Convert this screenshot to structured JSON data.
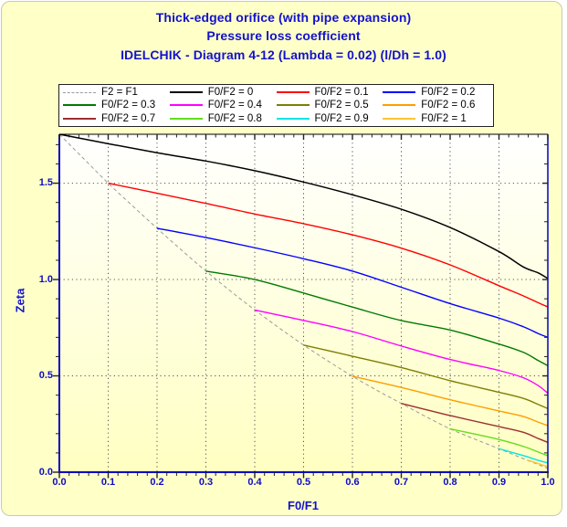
{
  "window": {
    "panel_bg": "#FFFFC8",
    "page_bg": "#FFFFFF"
  },
  "title": {
    "line1": "Thick-edged orifice (with pipe expansion)",
    "line2": "Pressure loss coefficient",
    "line3": "IDELCHIK - Diagram 4-12 (Lambda = 0.02) (l/Dh = 1.0)",
    "color": "#1212CC"
  },
  "chart_data": {
    "type": "line",
    "xlabel": "F0/F1",
    "ylabel": "Zeta",
    "xlim": [
      0,
      1
    ],
    "ylim": [
      0,
      1.754
    ],
    "x_ticks": [
      0,
      0.1,
      0.2,
      0.3,
      0.4,
      0.5,
      0.6,
      0.7,
      0.8,
      0.9,
      1.0
    ],
    "x_tick_labels": [
      "0.0",
      "0.1",
      "0.2",
      "0.3",
      "0.4",
      "0.5",
      "0.6",
      "0.7",
      "0.8",
      "0.9",
      "1.0"
    ],
    "y_ticks": [
      0,
      0.5,
      1.0,
      1.5
    ],
    "y_tick_labels": [
      "0.0",
      "0.5",
      "1.0",
      "1.5"
    ],
    "x_minor_step": 0.02,
    "y_minor_step": 0.1,
    "grid": "dotted",
    "grid_color": "#555555",
    "axis_color": "#0000C8",
    "top_frame_color": "#000000",
    "tick_color": "#222222",
    "plot_bg_gradient": [
      "#FFFFFF",
      "#FFFFC2"
    ],
    "legend_position": "top",
    "series": [
      {
        "name": "F2 = F1",
        "color": "#9A9A9A",
        "dash": true,
        "width": 1,
        "points": [
          [
            0,
            1.754
          ],
          [
            0.05,
            1.627
          ],
          [
            0.1,
            1.5
          ],
          [
            0.15,
            1.382
          ],
          [
            0.2,
            1.266
          ],
          [
            0.25,
            1.153
          ],
          [
            0.3,
            1.044
          ],
          [
            0.35,
            0.941
          ],
          [
            0.4,
            0.842
          ],
          [
            0.45,
            0.749
          ],
          [
            0.5,
            0.66
          ],
          [
            0.55,
            0.577
          ],
          [
            0.6,
            0.498
          ],
          [
            0.65,
            0.425
          ],
          [
            0.7,
            0.357
          ],
          [
            0.75,
            0.289
          ],
          [
            0.8,
            0.225
          ],
          [
            0.85,
            0.172
          ],
          [
            0.9,
            0.122
          ],
          [
            0.95,
            0.07
          ],
          [
            1,
            0.02
          ]
        ]
      },
      {
        "name": "F0/F2 = 0",
        "color": "#000000",
        "dash": false,
        "width": 1.5,
        "points": [
          [
            0,
            1.754
          ],
          [
            0.1,
            1.705
          ],
          [
            0.2,
            1.658
          ],
          [
            0.3,
            1.615
          ],
          [
            0.4,
            1.565
          ],
          [
            0.5,
            1.506
          ],
          [
            0.6,
            1.44
          ],
          [
            0.7,
            1.365
          ],
          [
            0.8,
            1.27
          ],
          [
            0.9,
            1.145
          ],
          [
            0.95,
            1.065
          ],
          [
            0.98,
            1.035
          ],
          [
            1,
            1.005
          ]
        ]
      },
      {
        "name": "F0/F2 = 0.1",
        "color": "#FF0000",
        "dash": false,
        "width": 1.4,
        "points": [
          [
            0.1,
            1.5
          ],
          [
            0.2,
            1.448
          ],
          [
            0.3,
            1.395
          ],
          [
            0.4,
            1.34
          ],
          [
            0.5,
            1.29
          ],
          [
            0.6,
            1.232
          ],
          [
            0.7,
            1.163
          ],
          [
            0.8,
            1.076
          ],
          [
            0.9,
            0.968
          ],
          [
            0.95,
            0.915
          ],
          [
            0.98,
            0.88
          ],
          [
            1,
            0.858
          ]
        ]
      },
      {
        "name": "F0/F2 = 0.2",
        "color": "#0000FF",
        "dash": false,
        "width": 1.4,
        "points": [
          [
            0.2,
            1.266
          ],
          [
            0.3,
            1.218
          ],
          [
            0.4,
            1.165
          ],
          [
            0.5,
            1.108
          ],
          [
            0.6,
            1.044
          ],
          [
            0.7,
            0.96
          ],
          [
            0.8,
            0.875
          ],
          [
            0.9,
            0.8
          ],
          [
            0.95,
            0.755
          ],
          [
            0.98,
            0.72
          ],
          [
            1,
            0.7
          ]
        ]
      },
      {
        "name": "F0/F2 = 0.3",
        "color": "#007A00",
        "dash": false,
        "width": 1.4,
        "points": [
          [
            0.3,
            1.044
          ],
          [
            0.4,
            1.0
          ],
          [
            0.5,
            0.93
          ],
          [
            0.6,
            0.857
          ],
          [
            0.7,
            0.787
          ],
          [
            0.8,
            0.738
          ],
          [
            0.9,
            0.665
          ],
          [
            0.95,
            0.622
          ],
          [
            0.98,
            0.58
          ],
          [
            1,
            0.553
          ]
        ]
      },
      {
        "name": "F0/F2 = 0.4",
        "color": "#FF00FF",
        "dash": false,
        "width": 1.4,
        "points": [
          [
            0.4,
            0.842
          ],
          [
            0.5,
            0.788
          ],
          [
            0.6,
            0.73
          ],
          [
            0.7,
            0.655
          ],
          [
            0.8,
            0.585
          ],
          [
            0.9,
            0.528
          ],
          [
            0.95,
            0.49
          ],
          [
            0.98,
            0.45
          ],
          [
            1,
            0.41
          ]
        ]
      },
      {
        "name": "F0/F2 = 0.5",
        "color": "#7E7E00",
        "dash": false,
        "width": 1.4,
        "points": [
          [
            0.5,
            0.66
          ],
          [
            0.6,
            0.602
          ],
          [
            0.7,
            0.543
          ],
          [
            0.8,
            0.475
          ],
          [
            0.9,
            0.415
          ],
          [
            0.95,
            0.383
          ],
          [
            0.98,
            0.352
          ],
          [
            1,
            0.33
          ]
        ]
      },
      {
        "name": "F0/F2 = 0.6",
        "color": "#FF9D00",
        "dash": false,
        "width": 1.4,
        "points": [
          [
            0.6,
            0.498
          ],
          [
            0.7,
            0.44
          ],
          [
            0.8,
            0.376
          ],
          [
            0.9,
            0.318
          ],
          [
            0.95,
            0.289
          ],
          [
            0.98,
            0.26
          ],
          [
            1,
            0.242
          ]
        ]
      },
      {
        "name": "F0/F2 = 0.7",
        "color": "#9C2F2F",
        "dash": false,
        "width": 1.4,
        "points": [
          [
            0.7,
            0.357
          ],
          [
            0.8,
            0.294
          ],
          [
            0.9,
            0.237
          ],
          [
            0.95,
            0.207
          ],
          [
            0.98,
            0.175
          ],
          [
            1,
            0.155
          ]
        ]
      },
      {
        "name": "F0/F2 = 0.8",
        "color": "#63DD1E",
        "dash": false,
        "width": 1.4,
        "points": [
          [
            0.8,
            0.225
          ],
          [
            0.85,
            0.198
          ],
          [
            0.9,
            0.17
          ],
          [
            0.95,
            0.134
          ],
          [
            0.98,
            0.105
          ],
          [
            1,
            0.085
          ]
        ]
      },
      {
        "name": "F0/F2 = 0.9",
        "color": "#00E6E6",
        "dash": false,
        "width": 1.4,
        "points": [
          [
            0.9,
            0.122
          ],
          [
            0.95,
            0.086
          ],
          [
            0.98,
            0.062
          ],
          [
            1,
            0.048
          ]
        ]
      },
      {
        "name": "F0/F2 = 1",
        "color": "#FFC435",
        "dash": false,
        "width": 1.4,
        "points": [
          [
            0.96,
            0.062
          ],
          [
            0.98,
            0.045
          ],
          [
            1,
            0.028
          ]
        ]
      }
    ]
  }
}
